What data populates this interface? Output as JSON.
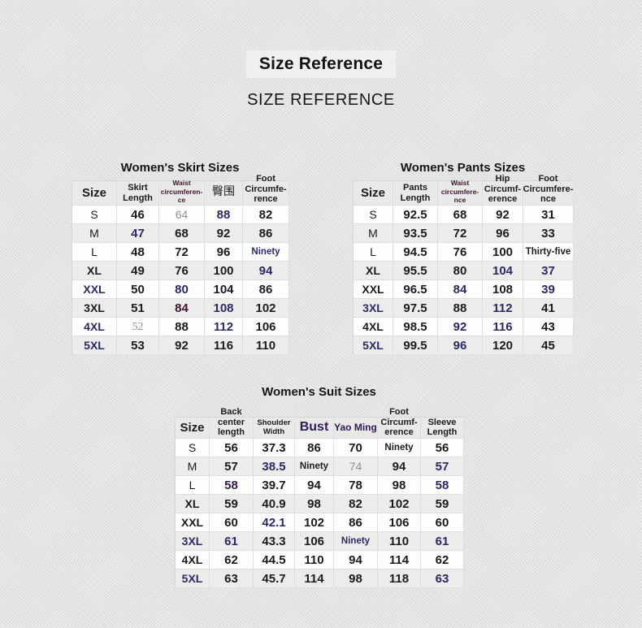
{
  "page": {
    "title": "Size Reference",
    "subtitle": "SIZE REFERENCE"
  },
  "colors": {
    "page_bg": "#e3e3e2",
    "header_bg": "#e9e9e8",
    "stripe": "#ececeb",
    "titleInk": "#111116",
    "ink": "#1b1b22",
    "navy": "#2a2a68",
    "gray": "#8f8f94",
    "maroon": "#3f1430",
    "purple": "#311a56"
  },
  "tables": [
    {
      "title": "Women's Skirt Sizes",
      "columns": [
        {
          "label": "Size",
          "cls": "h-size"
        },
        {
          "label": "Skirt\nLength",
          "cls": "h2"
        },
        {
          "label": "Waist\ncircumferen-\nce",
          "cls": "h3 c-maroon"
        },
        {
          "label": "臀围",
          "cls": "h-cn"
        },
        {
          "label": "Foot Circumfe-\nrence",
          "cls": "h2"
        }
      ],
      "rows": [
        {
          "label": "S",
          "lcls": "",
          "cells": [
            {
              "v": "46"
            },
            {
              "v": "64",
              "cls": "c-gray reg"
            },
            {
              "v": "88",
              "cls": "c-navy"
            },
            {
              "v": "82"
            }
          ]
        },
        {
          "label": "M",
          "lcls": "",
          "cells": [
            {
              "v": "47",
              "cls": "c-navy"
            },
            {
              "v": "68"
            },
            {
              "v": "92"
            },
            {
              "v": "86"
            }
          ]
        },
        {
          "label": "L",
          "lcls": "",
          "cells": [
            {
              "v": "48"
            },
            {
              "v": "72"
            },
            {
              "v": "96"
            },
            {
              "v": "Ninety",
              "cls": "c-navy sm"
            }
          ]
        },
        {
          "label": "XL",
          "lcls": "b",
          "cells": [
            {
              "v": "49"
            },
            {
              "v": "76"
            },
            {
              "v": "100"
            },
            {
              "v": "94",
              "cls": "c-navy"
            }
          ]
        },
        {
          "label": "XXL",
          "lcls": "b c-navy",
          "cells": [
            {
              "v": "50"
            },
            {
              "v": "80",
              "cls": "c-navy"
            },
            {
              "v": "104"
            },
            {
              "v": "86"
            }
          ]
        },
        {
          "label": "3XL",
          "lcls": "b",
          "cells": [
            {
              "v": "51"
            },
            {
              "v": "84",
              "cls": "c-maroon"
            },
            {
              "v": "108",
              "cls": "c-navy"
            },
            {
              "v": "102"
            }
          ]
        },
        {
          "label": "4XL",
          "lcls": "b c-navy",
          "cells": [
            {
              "v": "52",
              "cls": "c-gray serif"
            },
            {
              "v": "88"
            },
            {
              "v": "112",
              "cls": "c-navy"
            },
            {
              "v": "106"
            }
          ]
        },
        {
          "label": "5XL",
          "lcls": "b c-navy",
          "cells": [
            {
              "v": "53"
            },
            {
              "v": "92"
            },
            {
              "v": "116"
            },
            {
              "v": "110"
            }
          ]
        }
      ]
    },
    {
      "title": "Women's Pants Sizes",
      "columns": [
        {
          "label": "Size",
          "cls": "h-size"
        },
        {
          "label": "Pants\nLength",
          "cls": "h2"
        },
        {
          "label": "Waist\ncircumfere-\nnce",
          "cls": "h3 c-maroon"
        },
        {
          "label": "Hip\nCircumf-\nerence",
          "cls": "h2"
        },
        {
          "label": "Foot\nCircumfere-\nnce",
          "cls": "h2"
        }
      ],
      "rows": [
        {
          "label": "S",
          "lcls": "",
          "cells": [
            {
              "v": "92.5"
            },
            {
              "v": "68"
            },
            {
              "v": "92"
            },
            {
              "v": "31"
            }
          ]
        },
        {
          "label": "M",
          "lcls": "",
          "cells": [
            {
              "v": "93.5"
            },
            {
              "v": "72"
            },
            {
              "v": "96"
            },
            {
              "v": "33"
            }
          ]
        },
        {
          "label": "L",
          "lcls": "",
          "cells": [
            {
              "v": "94.5"
            },
            {
              "v": "76"
            },
            {
              "v": "100"
            },
            {
              "v": "Thirty-five",
              "cls": "sm"
            }
          ]
        },
        {
          "label": "XL",
          "lcls": "b",
          "cells": [
            {
              "v": "95.5"
            },
            {
              "v": "80"
            },
            {
              "v": "104",
              "cls": "c-navy"
            },
            {
              "v": "37",
              "cls": "c-navy"
            }
          ]
        },
        {
          "label": "XXL",
          "lcls": "b",
          "cells": [
            {
              "v": "96.5"
            },
            {
              "v": "84",
              "cls": "c-navy"
            },
            {
              "v": "108"
            },
            {
              "v": "39",
              "cls": "c-navy"
            }
          ]
        },
        {
          "label": "3XL",
          "lcls": "b c-navy",
          "cells": [
            {
              "v": "97.5"
            },
            {
              "v": "88"
            },
            {
              "v": "112",
              "cls": "c-navy"
            },
            {
              "v": "41"
            }
          ]
        },
        {
          "label": "4XL",
          "lcls": "b",
          "cells": [
            {
              "v": "98.5"
            },
            {
              "v": "92",
              "cls": "c-navy"
            },
            {
              "v": "116",
              "cls": "c-navy"
            },
            {
              "v": "43"
            }
          ]
        },
        {
          "label": "5XL",
          "lcls": "b c-navy",
          "cells": [
            {
              "v": "99.5"
            },
            {
              "v": "96",
              "cls": "c-navy"
            },
            {
              "v": "120"
            },
            {
              "v": "45"
            }
          ]
        }
      ]
    },
    {
      "title": "Women's Suit Sizes",
      "columns": [
        {
          "label": "Size",
          "cls": "h-size"
        },
        {
          "label": "Back\ncenter\nlength",
          "cls": "h2"
        },
        {
          "label": "Shoulder\nWidth",
          "cls": "h2b"
        },
        {
          "label": "Bust",
          "cls": "h-bust c-purple"
        },
        {
          "label": "Yao Ming",
          "cls": "h-yao c-purple"
        },
        {
          "label": "Foot\nCircumf-\nerence",
          "cls": "h2"
        },
        {
          "label": "Sleeve\nLength",
          "cls": "h2"
        }
      ],
      "rows": [
        {
          "label": "S",
          "lcls": "",
          "cells": [
            {
              "v": "56"
            },
            {
              "v": "37.3"
            },
            {
              "v": "86"
            },
            {
              "v": "70"
            },
            {
              "v": "Ninety",
              "cls": "sm"
            },
            {
              "v": "56"
            }
          ]
        },
        {
          "label": "M",
          "lcls": "",
          "cells": [
            {
              "v": "57"
            },
            {
              "v": "38.5",
              "cls": "c-navy"
            },
            {
              "v": "Ninety",
              "cls": "sm"
            },
            {
              "v": "74",
              "cls": "c-gray reg"
            },
            {
              "v": "94"
            },
            {
              "v": "57",
              "cls": "c-navy"
            }
          ]
        },
        {
          "label": "L",
          "lcls": "",
          "cells": [
            {
              "v": "58",
              "cls": "c-purple"
            },
            {
              "v": "39.7"
            },
            {
              "v": "94"
            },
            {
              "v": "78"
            },
            {
              "v": "98"
            },
            {
              "v": "58",
              "cls": "c-navy"
            }
          ]
        },
        {
          "label": "XL",
          "lcls": "b",
          "cells": [
            {
              "v": "59"
            },
            {
              "v": "40.9"
            },
            {
              "v": "98"
            },
            {
              "v": "82"
            },
            {
              "v": "102"
            },
            {
              "v": "59"
            }
          ]
        },
        {
          "label": "XXL",
          "lcls": "b",
          "cells": [
            {
              "v": "60"
            },
            {
              "v": "42.1",
              "cls": "c-navy"
            },
            {
              "v": "102"
            },
            {
              "v": "86"
            },
            {
              "v": "106"
            },
            {
              "v": "60"
            }
          ]
        },
        {
          "label": "3XL",
          "lcls": "b c-navy",
          "cells": [
            {
              "v": "61",
              "cls": "c-navy"
            },
            {
              "v": "43.3"
            },
            {
              "v": "106"
            },
            {
              "v": "Ninety",
              "cls": "c-navy sm"
            },
            {
              "v": "110"
            },
            {
              "v": "61",
              "cls": "c-navy"
            }
          ]
        },
        {
          "label": "4XL",
          "lcls": "b",
          "cells": [
            {
              "v": "62"
            },
            {
              "v": "44.5"
            },
            {
              "v": "110"
            },
            {
              "v": "94"
            },
            {
              "v": "114"
            },
            {
              "v": "62"
            }
          ]
        },
        {
          "label": "5XL",
          "lcls": "b c-navy",
          "cells": [
            {
              "v": "63"
            },
            {
              "v": "45.7"
            },
            {
              "v": "114"
            },
            {
              "v": "98"
            },
            {
              "v": "118"
            },
            {
              "v": "63",
              "cls": "c-navy"
            }
          ]
        }
      ]
    }
  ]
}
